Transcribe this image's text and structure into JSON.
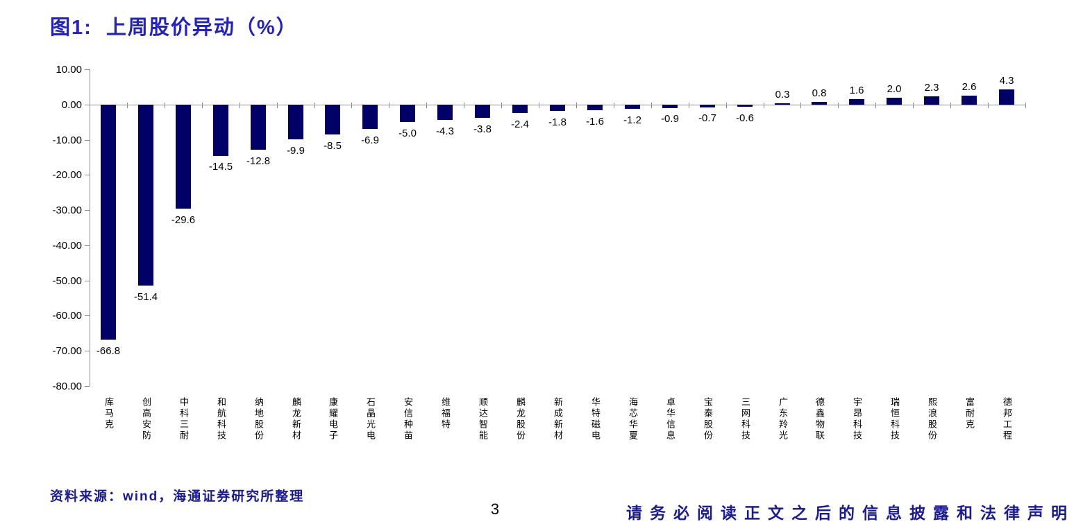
{
  "title": "图1:  上周股价异动（%）",
  "chart_data": {
    "type": "bar",
    "title": "上周股价异动（%）",
    "categories": [
      "库马克",
      "创高安防",
      "中科三耐",
      "和航科技",
      "纳地股份",
      "麟龙新材",
      "康耀电子",
      "石晶光电",
      "安信种苗",
      "维福特",
      "顺达智能",
      "麟龙股份",
      "新成新材",
      "华特磁电",
      "海芯华夏",
      "卓华信息",
      "宝泰股份",
      "三网科技",
      "广东羚光",
      "德鑫物联",
      "宇昂科技",
      "瑞恒科技",
      "熙浪股份",
      "富耐克",
      "德邦工程"
    ],
    "values": [
      -66.8,
      -51.4,
      -29.6,
      -14.5,
      -12.8,
      -9.9,
      -8.5,
      -6.9,
      -5.0,
      -4.3,
      -3.8,
      -2.4,
      -1.8,
      -1.6,
      -1.2,
      -0.9,
      -0.7,
      -0.6,
      0.3,
      0.8,
      1.6,
      2.0,
      2.3,
      2.6,
      4.3
    ],
    "value_labels": [
      "-66.8",
      "-51.4",
      "-29.6",
      "-14.5",
      "-12.8",
      "-9.9",
      "-8.5",
      "-6.9",
      "-5.0",
      "-4.3",
      "-3.8",
      "-2.4",
      "-1.8",
      "-1.6",
      "-1.2",
      "-0.9",
      "-0.7",
      "-0.6",
      "0.3",
      "0.8",
      "1.6",
      "2.0",
      "2.3",
      "2.6",
      "4.3"
    ],
    "y_ticks": [
      "10.00",
      "0.00",
      "-10.00",
      "-20.00",
      "-30.00",
      "-40.00",
      "-50.00",
      "-60.00",
      "-70.00",
      "-80.00"
    ],
    "ylim": [
      -80,
      10
    ],
    "xlabel": "",
    "ylabel": "",
    "grid": false,
    "legend": false,
    "bar_color": "#000066",
    "axis_color": "#8C8C8C"
  },
  "footer": {
    "source_note": "资料来源：wind，海通证券研究所整理",
    "page_number": "3",
    "disclaimer": "请务必阅读正文之后的信息披露和法律声明"
  },
  "colors": {
    "title_blue": "#2121C4",
    "footer_navy": "#1A1A96",
    "bar_navy": "#000066",
    "axis_gray": "#8C8C8C"
  }
}
